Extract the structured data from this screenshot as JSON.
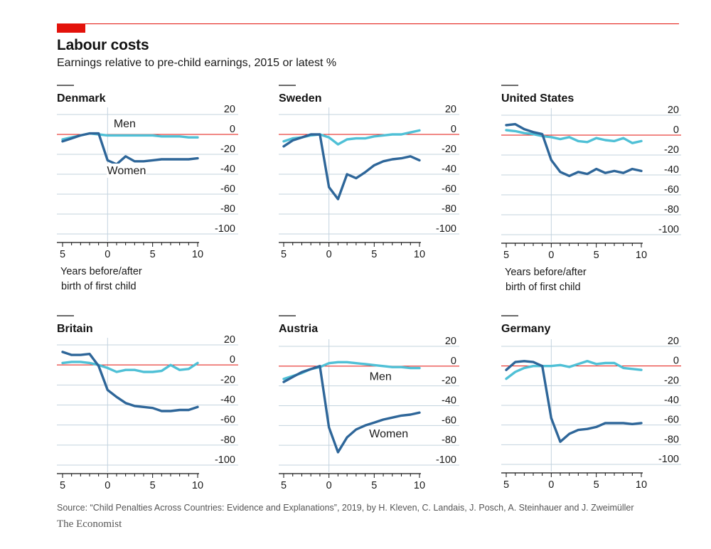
{
  "title": "Labour costs",
  "subtitle": "Earnings relative to pre-child earnings, 2015 or latest %",
  "source": "Source: “Child Penalties Across Countries: Evidence and Explanations”, 2019, by H. Kleven, C. Landais, J. Posch, A. Steinhauer and J. Zweimüller",
  "brand": "The Economist",
  "x_axis_note": [
    "Years before/after",
    "birth of first child"
  ],
  "colors": {
    "men": "#4fc0d6",
    "women": "#2e6699",
    "zero_line": "#e3120b",
    "grid": "#c3d3de",
    "accent": "#e3120b"
  },
  "chart_data": [
    {
      "type": "line",
      "title": "Denmark",
      "x": [
        -5,
        -4,
        -3,
        -2,
        -1,
        0,
        1,
        2,
        3,
        4,
        5,
        6,
        7,
        8,
        9,
        10
      ],
      "xlim": [
        -5,
        10
      ],
      "ylim": [
        -100,
        20
      ],
      "x_ticks": [
        -5,
        0,
        5,
        10
      ],
      "x_tick_labels": [
        "5",
        "0",
        "5",
        "10"
      ],
      "y_ticks": [
        20,
        0,
        -20,
        -40,
        -60,
        -80,
        -100
      ],
      "y_tick_labels": [
        "20",
        "0",
        "-20",
        "-40",
        "-60",
        "-80",
        "-100"
      ],
      "show_x_note": true,
      "annotations": [
        {
          "text": "Men",
          "x": 1.9,
          "y": 7
        },
        {
          "text": "Women",
          "x": 2.1,
          "y": -40
        }
      ],
      "series": [
        {
          "name": "Men",
          "values": [
            -5,
            -3,
            -1,
            1,
            0,
            -1,
            -1,
            -1,
            -1,
            -1,
            -1,
            -2,
            -2,
            -2,
            -3,
            -3
          ]
        },
        {
          "name": "Women",
          "values": [
            -7,
            -4,
            -1,
            1,
            1,
            -26,
            -30,
            -22,
            -27,
            -27,
            -26,
            -25,
            -25,
            -25,
            -25,
            -24
          ]
        }
      ]
    },
    {
      "type": "line",
      "title": "Sweden",
      "x": [
        -5,
        -4,
        -3,
        -2,
        -1,
        0,
        1,
        2,
        3,
        4,
        5,
        6,
        7,
        8,
        9,
        10
      ],
      "xlim": [
        -5,
        10
      ],
      "ylim": [
        -100,
        20
      ],
      "x_ticks": [
        -5,
        0,
        5,
        10
      ],
      "x_tick_labels": [
        "5",
        "0",
        "5",
        "10"
      ],
      "y_ticks": [
        20,
        0,
        -20,
        -40,
        -60,
        -80,
        -100
      ],
      "y_tick_labels": [
        "20",
        "0",
        "-20",
        "-40",
        "-60",
        "-80",
        "-100"
      ],
      "show_x_note": false,
      "annotations": [],
      "series": [
        {
          "name": "Men",
          "values": [
            -7,
            -4,
            -3,
            -1,
            0,
            -3,
            -10,
            -5,
            -4,
            -4,
            -2,
            -1,
            0,
            0,
            2,
            4
          ]
        },
        {
          "name": "Women",
          "values": [
            -12,
            -6,
            -3,
            0,
            0,
            -53,
            -65,
            -40,
            -44,
            -38,
            -31,
            -27,
            -25,
            -24,
            -22,
            -26
          ]
        }
      ]
    },
    {
      "type": "line",
      "title": "United States",
      "x": [
        -5,
        -4,
        -3,
        -2,
        -1,
        0,
        1,
        2,
        3,
        4,
        5,
        6,
        7,
        8,
        9,
        10
      ],
      "xlim": [
        -5,
        10
      ],
      "ylim": [
        -100,
        20
      ],
      "x_ticks": [
        -5,
        0,
        5,
        10
      ],
      "x_tick_labels": [
        "5",
        "0",
        "5",
        "10"
      ],
      "y_ticks": [
        20,
        0,
        -20,
        -40,
        -60,
        -80,
        -100
      ],
      "y_tick_labels": [
        "20",
        "0",
        "-20",
        "-40",
        "-60",
        "-80",
        "-100"
      ],
      "show_x_note": true,
      "annotations": [],
      "series": [
        {
          "name": "Men",
          "values": [
            5,
            4,
            2,
            1,
            -1,
            -2,
            -4,
            -2,
            -6,
            -7,
            -3,
            -5,
            -6,
            -3,
            -8,
            -6
          ]
        },
        {
          "name": "Women",
          "values": [
            10,
            11,
            6,
            3,
            1,
            -25,
            -37,
            -41,
            -37,
            -39,
            -34,
            -38,
            -36,
            -38,
            -34,
            -36
          ]
        }
      ]
    },
    {
      "type": "line",
      "title": "Britain",
      "x": [
        -5,
        -4,
        -3,
        -2,
        -1,
        0,
        1,
        2,
        3,
        4,
        5,
        6,
        7,
        8,
        9,
        10
      ],
      "xlim": [
        -5,
        10
      ],
      "ylim": [
        -100,
        20
      ],
      "x_ticks": [
        -5,
        0,
        5,
        10
      ],
      "x_tick_labels": [
        "5",
        "0",
        "5",
        "10"
      ],
      "y_ticks": [
        20,
        0,
        -20,
        -40,
        -60,
        -80,
        -100
      ],
      "y_tick_labels": [
        "20",
        "0",
        "-20",
        "-40",
        "-60",
        "-80",
        "-100"
      ],
      "show_x_note": false,
      "annotations": [],
      "series": [
        {
          "name": "Men",
          "values": [
            2,
            3,
            3,
            2,
            0,
            -3,
            -7,
            -5,
            -5,
            -7,
            -7,
            -6,
            0,
            -5,
            -4,
            2
          ]
        },
        {
          "name": "Women",
          "values": [
            13,
            10,
            10,
            11,
            -1,
            -25,
            -32,
            -38,
            -41,
            -42,
            -43,
            -46,
            -46,
            -45,
            -45,
            -42
          ]
        }
      ]
    },
    {
      "type": "line",
      "title": "Austria",
      "x": [
        -5,
        -4,
        -3,
        -2,
        -1,
        0,
        1,
        2,
        3,
        4,
        5,
        6,
        7,
        8,
        9,
        10
      ],
      "xlim": [
        -5,
        10
      ],
      "ylim": [
        -100,
        20
      ],
      "x_ticks": [
        -5,
        0,
        5,
        10
      ],
      "x_tick_labels": [
        "5",
        "0",
        "5",
        "10"
      ],
      "y_ticks": [
        20,
        0,
        -20,
        -40,
        -60,
        -80,
        -100
      ],
      "y_tick_labels": [
        "20",
        "0",
        "-20",
        "-40",
        "-60",
        "-80",
        "-100"
      ],
      "show_x_note": false,
      "annotations": [
        {
          "text": "Men",
          "x": 5.7,
          "y": -14
        },
        {
          "text": "Women",
          "x": 6.6,
          "y": -72
        }
      ],
      "series": [
        {
          "name": "Men",
          "values": [
            -13,
            -10,
            -7,
            -3,
            -1,
            3,
            4,
            4,
            3,
            2,
            1,
            0,
            -1,
            -1,
            -2,
            -2
          ]
        },
        {
          "name": "Women",
          "values": [
            -16,
            -11,
            -6,
            -3,
            0,
            -62,
            -87,
            -72,
            -64,
            -60,
            -57,
            -54,
            -52,
            -50,
            -49,
            -47
          ]
        }
      ]
    },
    {
      "type": "line",
      "title": "Germany",
      "x": [
        -5,
        -4,
        -3,
        -2,
        -1,
        0,
        1,
        2,
        3,
        4,
        5,
        6,
        7,
        8,
        9,
        10
      ],
      "xlim": [
        -5,
        10
      ],
      "ylim": [
        -100,
        20
      ],
      "x_ticks": [
        -5,
        0,
        5,
        10
      ],
      "x_tick_labels": [
        "5",
        "0",
        "5",
        "10"
      ],
      "y_ticks": [
        20,
        0,
        -20,
        -40,
        -60,
        -80,
        -100
      ],
      "y_tick_labels": [
        "20",
        "0",
        "-20",
        "-40",
        "-60",
        "-80",
        "-100"
      ],
      "show_x_note": false,
      "annotations": [],
      "series": [
        {
          "name": "Men",
          "values": [
            -13,
            -6,
            -2,
            0,
            0,
            0,
            1,
            -1,
            2,
            5,
            2,
            3,
            3,
            -2,
            -3,
            -4
          ]
        },
        {
          "name": "Women",
          "values": [
            -4,
            4,
            5,
            4,
            0,
            -53,
            -77,
            -69,
            -65,
            -64,
            -62,
            -58,
            -58,
            -58,
            -59,
            -58
          ]
        }
      ]
    }
  ]
}
